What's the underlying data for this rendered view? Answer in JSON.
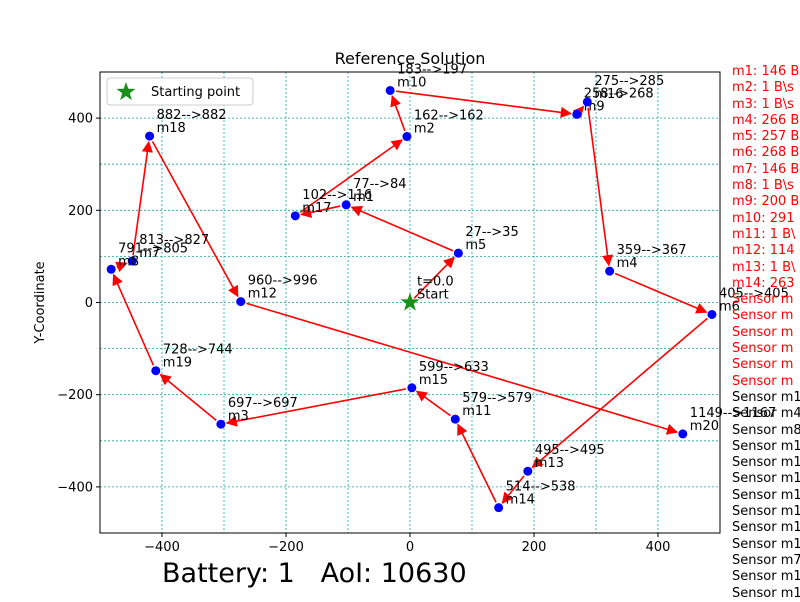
{
  "chart_data": {
    "type": "scatter",
    "title": "Reference Solution",
    "xlabel": "",
    "ylabel": "Y-Coordinate",
    "xlim": [
      -500,
      500
    ],
    "ylim": [
      -500,
      500
    ],
    "xticks": [
      -400,
      -200,
      0,
      200,
      400
    ],
    "yticks": [
      -400,
      -200,
      0,
      200,
      400
    ],
    "grid": true,
    "grid_color": "#1aa5a5",
    "legend": {
      "position": "upper-left",
      "entries": [
        "Starting point"
      ]
    },
    "start": {
      "x": 0,
      "y": 0,
      "label_top": "t=0.0",
      "label_bottom": "Start",
      "color": "#1a8f1a"
    },
    "node_color": "#0000ff",
    "arrow_color": "#ff0000",
    "nodes": [
      {
        "id": "m1",
        "x": -103,
        "y": 212,
        "time": "77-->84",
        "label": "m1"
      },
      {
        "id": "m2",
        "x": -5,
        "y": 360,
        "time": "162-->162",
        "label": "m2"
      },
      {
        "id": "m3",
        "x": -305,
        "y": -264,
        "time": "697-->697",
        "label": "m3"
      },
      {
        "id": "m4",
        "x": 322,
        "y": 68,
        "time": "359-->367",
        "label": "m4"
      },
      {
        "id": "m5",
        "x": 78,
        "y": 107,
        "time": "27-->35",
        "label": "m5"
      },
      {
        "id": "m6",
        "x": 487,
        "y": -26,
        "time": "405-->405",
        "label": "m6"
      },
      {
        "id": "m7",
        "x": -448,
        "y": 90,
        "time": "813-->827",
        "label": "m7"
      },
      {
        "id": "m8",
        "x": -482,
        "y": 72,
        "time": "791-->805",
        "label": "m8"
      },
      {
        "id": "m9",
        "x": 269,
        "y": 408,
        "time": "258-->268",
        "label": "m9"
      },
      {
        "id": "m10",
        "x": -32,
        "y": 460,
        "time": "183-->197",
        "label": "m10"
      },
      {
        "id": "m11",
        "x": 73,
        "y": -253,
        "time": "579-->579",
        "label": "m11"
      },
      {
        "id": "m12",
        "x": -273,
        "y": 2,
        "time": "960-->996",
        "label": "m12"
      },
      {
        "id": "m13",
        "x": 190,
        "y": -366,
        "time": "495-->495",
        "label": "m13"
      },
      {
        "id": "m14",
        "x": 143,
        "y": -445,
        "time": "514-->538",
        "label": "m14"
      },
      {
        "id": "m15",
        "x": 3,
        "y": -185,
        "time": "599-->633",
        "label": "m15"
      },
      {
        "id": "m16",
        "x": 286,
        "y": 435,
        "time": "275-->285",
        "label": "m16"
      },
      {
        "id": "m17",
        "x": -185,
        "y": 188,
        "time": "102-->116",
        "label": "m17"
      },
      {
        "id": "m18",
        "x": -420,
        "y": 361,
        "time": "882-->882",
        "label": "m18"
      },
      {
        "id": "m19",
        "x": -410,
        "y": -148,
        "time": "728-->744",
        "label": "m19"
      },
      {
        "id": "m20",
        "x": 440,
        "y": -285,
        "time": "1149-->1167",
        "label": "m20"
      }
    ],
    "route": [
      "start",
      "m5",
      "m1",
      "m17",
      "m2",
      "m10",
      "m9",
      "m16",
      "m4",
      "m6",
      "m13",
      "m14",
      "m11",
      "m15",
      "m3",
      "m19",
      "m8",
      "m7",
      "m18",
      "m12",
      "m20"
    ]
  },
  "side_list_red": [
    "m1: 146 B",
    "m2: 1 B\\s",
    "m3: 1 B\\s",
    "m4: 266 B",
    "m5: 257 B",
    "m6: 268 B",
    "m7: 146 B",
    "m8: 1 B\\s",
    "m9: 200 B",
    "m10: 291",
    "m11: 1 B\\",
    "m12: 114",
    "m13: 1 B\\",
    "m14: 263",
    "Sensor m",
    "Sensor m",
    "Sensor m",
    "Sensor m",
    "Sensor m",
    "Sensor m"
  ],
  "side_list_black": [
    "Sensor m1",
    "Sensor m4",
    "Sensor m8",
    "Sensor m1",
    "Sensor m1",
    "Sensor m1",
    "Sensor m1",
    "Sensor m1",
    "Sensor m1",
    "Sensor m1",
    "Sensor m7",
    "Sensor m1",
    "Sensor m1"
  ],
  "footer": {
    "battery": "Battery: 1",
    "aoi": "AoI: 10630"
  }
}
